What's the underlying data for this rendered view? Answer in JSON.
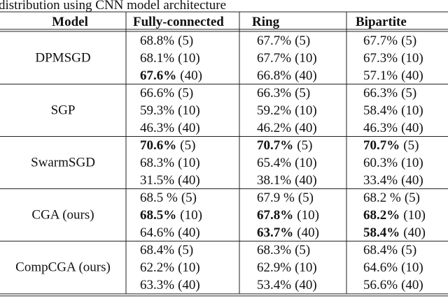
{
  "caption": "distribution using CNN model architecture",
  "table": {
    "header": [
      "Model",
      "Fully-connected",
      "Ring",
      "Bipartite"
    ],
    "groups": [
      {
        "model": "DPMSGD",
        "rows": [
          [
            {
              "main": "68.8%",
              "note": "(5)",
              "bold": false
            },
            {
              "main": "67.7%",
              "note": "(5)",
              "bold": false
            },
            {
              "main": "67.7%",
              "note": "(5)",
              "bold": false
            }
          ],
          [
            {
              "main": "68.1%",
              "note": "(10)",
              "bold": false
            },
            {
              "main": "67.7%",
              "note": "(10)",
              "bold": false
            },
            {
              "main": "67.3%",
              "note": "(10)",
              "bold": false
            }
          ],
          [
            {
              "main": "67.6%",
              "note": "(40)",
              "bold": true
            },
            {
              "main": "66.8%",
              "note": "(40)",
              "bold": false
            },
            {
              "main": "57.1%",
              "note": "(40)",
              "bold": false
            }
          ]
        ]
      },
      {
        "model": "SGP",
        "rows": [
          [
            {
              "main": "66.6%",
              "note": "(5)",
              "bold": false
            },
            {
              "main": "66.3%",
              "note": "(5)",
              "bold": false
            },
            {
              "main": "66.3%",
              "note": "(5)",
              "bold": false
            }
          ],
          [
            {
              "main": "59.3%",
              "note": "(10)",
              "bold": false
            },
            {
              "main": "59.2%",
              "note": "(10)",
              "bold": false
            },
            {
              "main": "58.4%",
              "note": "(10)",
              "bold": false
            }
          ],
          [
            {
              "main": "46.3%",
              "note": "(40)",
              "bold": false
            },
            {
              "main": "46.2%",
              "note": "(40)",
              "bold": false
            },
            {
              "main": "46.3%",
              "note": "(40)",
              "bold": false
            }
          ]
        ]
      },
      {
        "model": "SwarmSGD",
        "rows": [
          [
            {
              "main": "70.6%",
              "note": "(5)",
              "bold": true
            },
            {
              "main": "70.7%",
              "note": "(5)",
              "bold": true
            },
            {
              "main": "70.7%",
              "note": "(5)",
              "bold": true
            }
          ],
          [
            {
              "main": "68.3%",
              "note": "(10)",
              "bold": false
            },
            {
              "main": "65.4%",
              "note": "(10)",
              "bold": false
            },
            {
              "main": "60.3%",
              "note": "(10)",
              "bold": false
            }
          ],
          [
            {
              "main": "31.5%",
              "note": "(40)",
              "bold": false
            },
            {
              "main": "38.1%",
              "note": "(40)",
              "bold": false
            },
            {
              "main": "33.4%",
              "note": "(40)",
              "bold": false
            }
          ]
        ]
      },
      {
        "model": "CGA (ours)",
        "rows": [
          [
            {
              "main": "68.5 %",
              "note": "(5)",
              "bold": false
            },
            {
              "main": "67.9 %",
              "note": "(5)",
              "bold": false
            },
            {
              "main": "68.2 %",
              "note": "(5)",
              "bold": false
            }
          ],
          [
            {
              "main": "68.5%",
              "note": "(10)",
              "bold": true
            },
            {
              "main": "67.8%",
              "note": "(10)",
              "bold": true
            },
            {
              "main": "68.2%",
              "note": "(10)",
              "bold": true
            }
          ],
          [
            {
              "main": "64.6%",
              "note": "(40)",
              "bold": false
            },
            {
              "main": "63.7%",
              "note": "(40)",
              "bold": true
            },
            {
              "main": "58.4%",
              "note": "(40)",
              "bold": true
            }
          ]
        ]
      },
      {
        "model": "CompCGA (ours)",
        "rows": [
          [
            {
              "main": "68.4%",
              "note": "(5)",
              "bold": false
            },
            {
              "main": "68.3%",
              "note": "(5)",
              "bold": false
            },
            {
              "main": "68.4%",
              "note": "(5)",
              "bold": false
            }
          ],
          [
            {
              "main": "62.2%",
              "note": "(10)",
              "bold": false
            },
            {
              "main": "62.9%",
              "note": "(10)",
              "bold": false
            },
            {
              "main": "64.6%",
              "note": "(10)",
              "bold": false
            }
          ],
          [
            {
              "main": "63.3%",
              "note": "(40)",
              "bold": false
            },
            {
              "main": "53.4%",
              "note": "(40)",
              "bold": false
            },
            {
              "main": "56.6%",
              "note": "(40)",
              "bold": false
            }
          ]
        ]
      }
    ]
  }
}
